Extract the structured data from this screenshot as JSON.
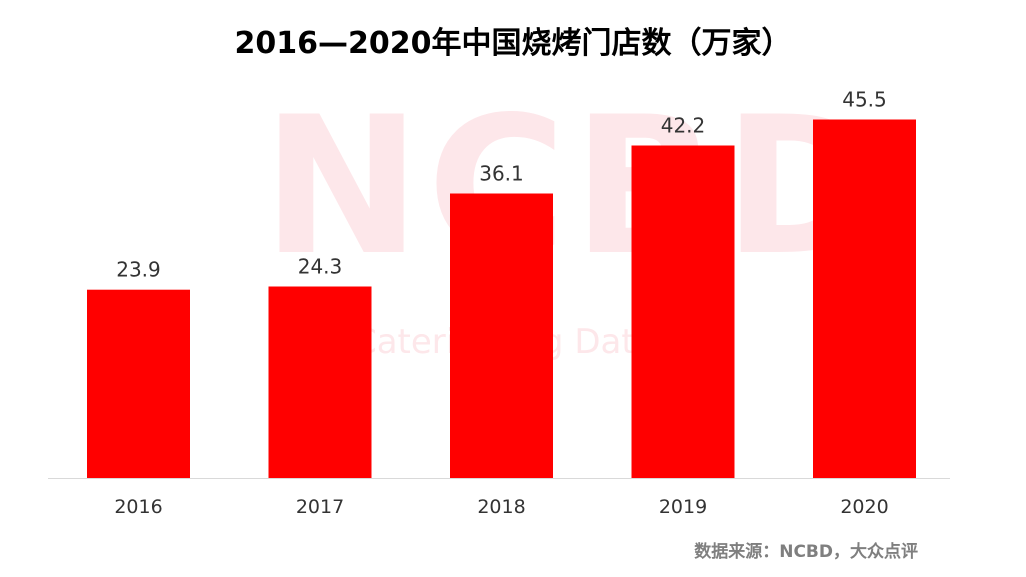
{
  "chart_data": {
    "type": "bar",
    "title": "2016—2020年中国烧烤门店数（万家）",
    "categories": [
      "2016",
      "2017",
      "2018",
      "2019",
      "2020"
    ],
    "values": [
      23.9,
      24.3,
      36.1,
      42.2,
      45.5
    ],
    "data_labels": [
      "23.9",
      "24.3",
      "36.1",
      "42.2",
      "45.5"
    ],
    "ylim": [
      0,
      50
    ],
    "grid": false,
    "legend": "none",
    "bar_color": "#ff0000"
  },
  "source": "数据来源：NCBD，大众点评",
  "watermark": {
    "logo_text": "NCBD",
    "subtitle_text": "New Catering Big Data"
  }
}
